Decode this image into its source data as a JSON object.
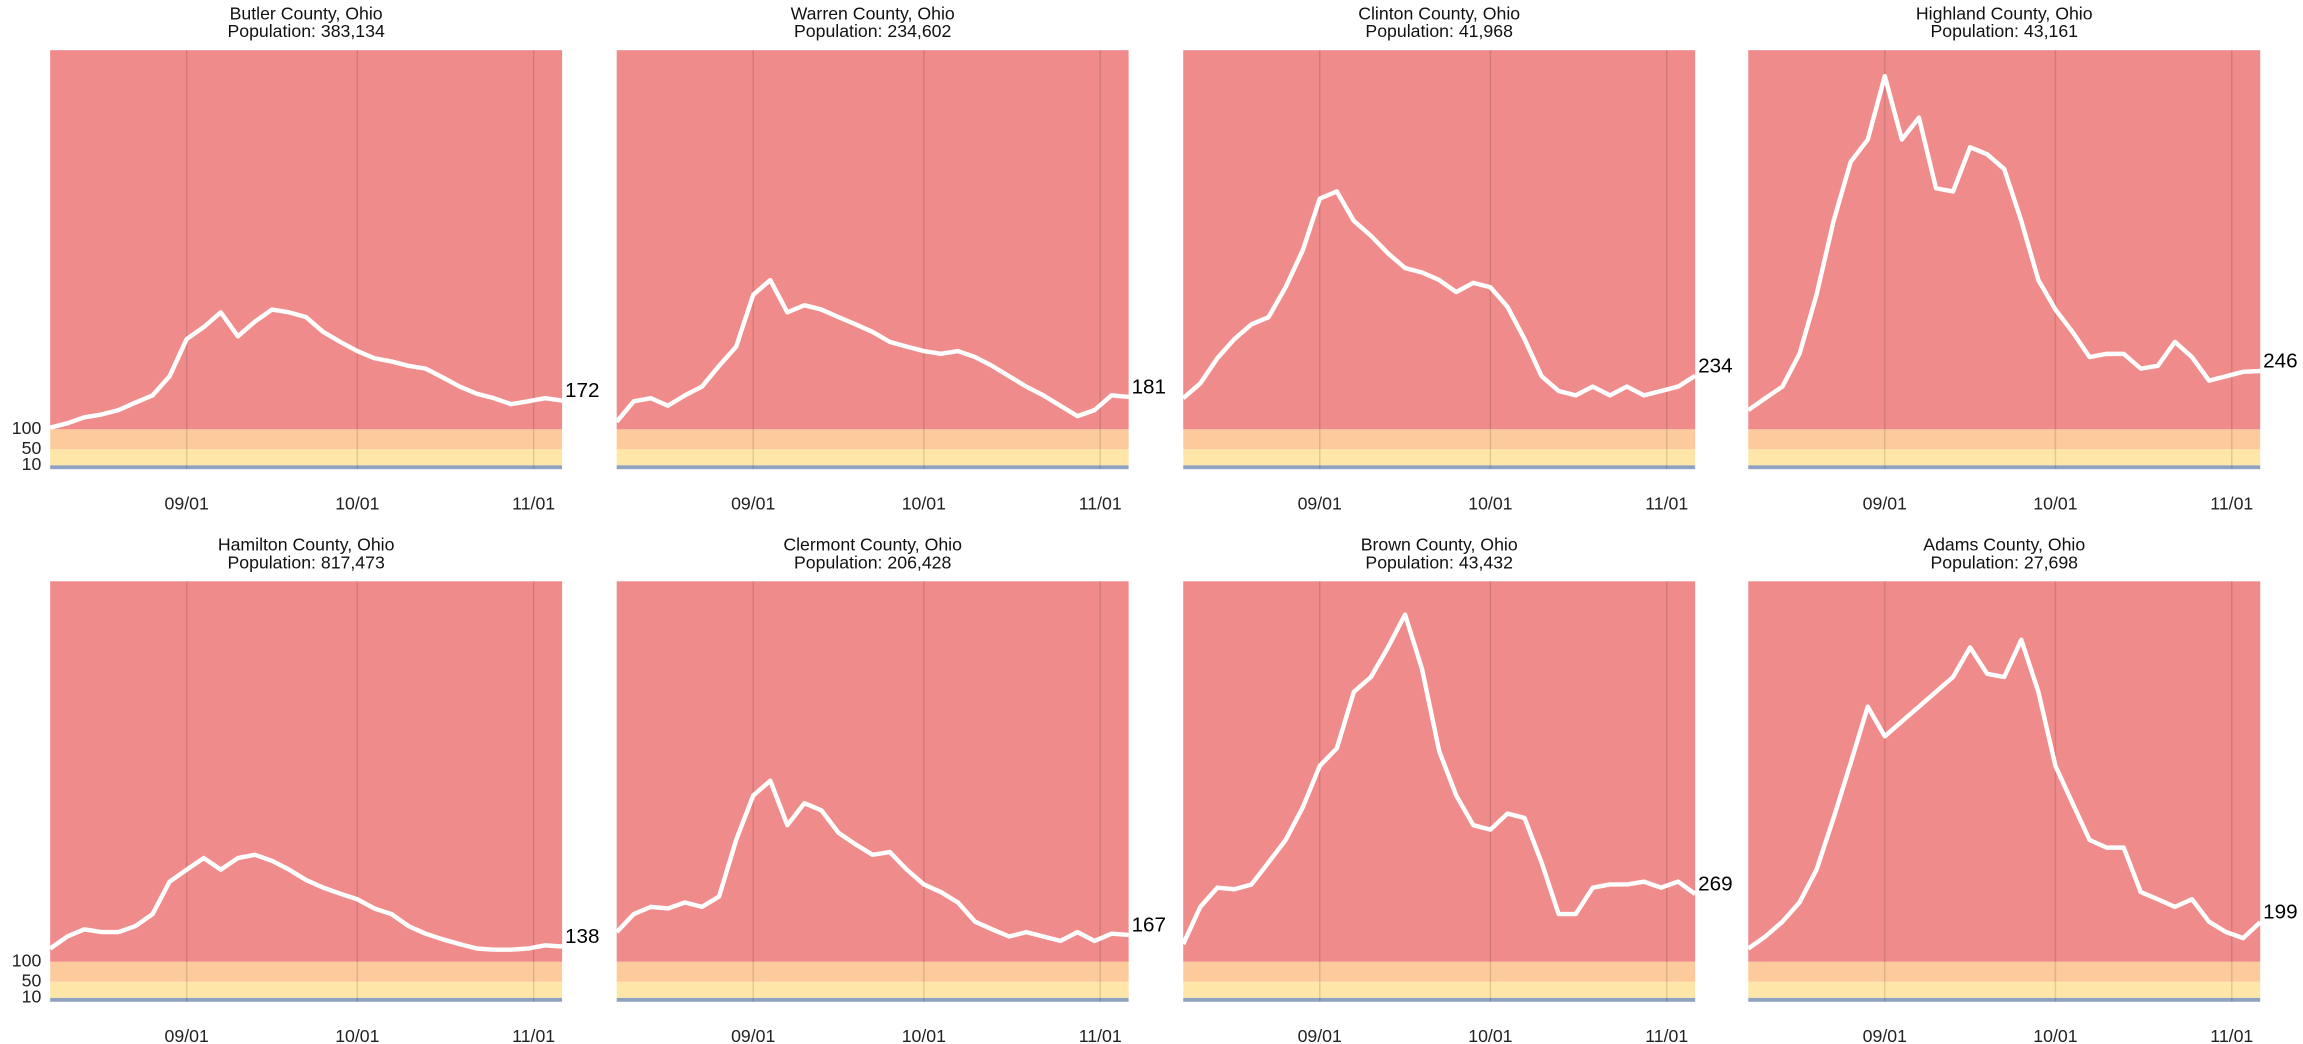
{
  "chart_data": [
    {
      "type": "line",
      "title": "Butler County, Ohio",
      "subtitle": "Population: 383,134",
      "x": [
        "08/08",
        "08/11",
        "08/14",
        "08/17",
        "08/20",
        "08/23",
        "08/26",
        "08/29",
        "09/01",
        "09/04",
        "09/07",
        "09/10",
        "09/13",
        "09/16",
        "09/19",
        "09/22",
        "09/25",
        "09/28",
        "10/01",
        "10/04",
        "10/07",
        "10/10",
        "10/13",
        "10/16",
        "10/19",
        "10/22",
        "10/25",
        "10/28",
        "10/31",
        "11/03",
        "11/06"
      ],
      "values": [
        104,
        115,
        130,
        137,
        148,
        167,
        185,
        233,
        326,
        356,
        393,
        333,
        370,
        400,
        393,
        381,
        344,
        319,
        296,
        278,
        270,
        259,
        252,
        230,
        207,
        189,
        178,
        163,
        170,
        178,
        172
      ],
      "color": "#ffffff",
      "xlim": [
        "08/08",
        "11/06"
      ],
      "xticks": [
        "09/01",
        "10/01",
        "11/01"
      ],
      "ylim": [
        0,
        1050
      ],
      "yticks": [
        10,
        50,
        100
      ],
      "bands": [
        {
          "from": 0,
          "to": 10,
          "color": "#8fa3c0"
        },
        {
          "from": 10,
          "to": 50,
          "color": "#fde6a8"
        },
        {
          "from": 50,
          "to": 100,
          "color": "#fdca9c"
        },
        {
          "from": 100,
          "color": "#f08b8b"
        }
      ]
    },
    {
      "type": "line",
      "title": "Warren County, Ohio",
      "subtitle": "Population: 234,602",
      "x": [
        "08/08",
        "08/11",
        "08/14",
        "08/17",
        "08/20",
        "08/23",
        "08/26",
        "08/29",
        "09/01",
        "09/04",
        "09/07",
        "09/10",
        "09/13",
        "09/16",
        "09/19",
        "09/22",
        "09/25",
        "09/28",
        "10/01",
        "10/04",
        "10/07",
        "10/10",
        "10/13",
        "10/16",
        "10/19",
        "10/22",
        "10/25",
        "10/28",
        "10/31",
        "11/03",
        "11/06"
      ],
      "values": [
        119,
        170,
        178,
        159,
        185,
        207,
        259,
        307,
        437,
        474,
        393,
        411,
        400,
        381,
        363,
        344,
        319,
        307,
        296,
        289,
        296,
        281,
        259,
        233,
        207,
        185,
        159,
        133,
        148,
        185,
        181
      ],
      "color": "#ffffff",
      "xlim": [
        "08/08",
        "11/06"
      ],
      "xticks": [
        "09/01",
        "10/01",
        "11/01"
      ],
      "ylim": [
        0,
        1050
      ],
      "bands": [
        {
          "from": 0,
          "to": 10,
          "color": "#8fa3c0"
        },
        {
          "from": 10,
          "to": 50,
          "color": "#fde6a8"
        },
        {
          "from": 50,
          "to": 100,
          "color": "#fdca9c"
        },
        {
          "from": 100,
          "color": "#f08b8b"
        }
      ]
    },
    {
      "type": "line",
      "title": "Clinton County, Ohio",
      "subtitle": "Population:  41,968",
      "x": [
        "08/08",
        "08/11",
        "08/14",
        "08/17",
        "08/20",
        "08/23",
        "08/26",
        "08/29",
        "09/01",
        "09/04",
        "09/07",
        "09/10",
        "09/13",
        "09/16",
        "09/19",
        "09/22",
        "09/25",
        "09/28",
        "10/01",
        "10/04",
        "10/07",
        "10/10",
        "10/13",
        "10/16",
        "10/19",
        "10/22",
        "10/25",
        "10/28",
        "10/31",
        "11/03",
        "11/06"
      ],
      "values": [
        178,
        215,
        278,
        326,
        363,
        381,
        456,
        548,
        678,
        696,
        622,
        585,
        541,
        504,
        493,
        474,
        444,
        467,
        456,
        407,
        326,
        233,
        196,
        185,
        207,
        185,
        207,
        185,
        196,
        207,
        234
      ],
      "color": "#ffffff",
      "xlim": [
        "08/08",
        "11/06"
      ],
      "xticks": [
        "09/01",
        "10/01",
        "11/01"
      ],
      "ylim": [
        0,
        1050
      ],
      "bands": [
        {
          "from": 0,
          "to": 10,
          "color": "#8fa3c0"
        },
        {
          "from": 10,
          "to": 50,
          "color": "#fde6a8"
        },
        {
          "from": 50,
          "to": 100,
          "color": "#fdca9c"
        },
        {
          "from": 100,
          "color": "#f08b8b"
        }
      ]
    },
    {
      "type": "line",
      "title": "Highland County, Ohio",
      "subtitle": "Population:  43,161",
      "x": [
        "08/08",
        "08/11",
        "08/14",
        "08/17",
        "08/20",
        "08/23",
        "08/26",
        "08/29",
        "09/01",
        "09/04",
        "09/07",
        "09/10",
        "09/13",
        "09/16",
        "09/19",
        "09/22",
        "09/25",
        "09/28",
        "10/01",
        "10/04",
        "10/07",
        "10/10",
        "10/13",
        "10/16",
        "10/19",
        "10/22",
        "10/25",
        "10/28",
        "10/31",
        "11/03",
        "11/06"
      ],
      "values": [
        148,
        178,
        207,
        289,
        437,
        622,
        770,
        826,
        985,
        826,
        881,
        704,
        696,
        807,
        789,
        752,
        622,
        474,
        400,
        344,
        281,
        289,
        289,
        252,
        259,
        319,
        281,
        222,
        233,
        244,
        246
      ],
      "color": "#ffffff",
      "xlim": [
        "08/08",
        "11/06"
      ],
      "xticks": [
        "09/01",
        "10/01",
        "11/01"
      ],
      "ylim": [
        0,
        1050
      ],
      "bands": [
        {
          "from": 0,
          "to": 10,
          "color": "#8fa3c0"
        },
        {
          "from": 10,
          "to": 50,
          "color": "#fde6a8"
        },
        {
          "from": 50,
          "to": 100,
          "color": "#fdca9c"
        },
        {
          "from": 100,
          "color": "#f08b8b"
        }
      ]
    },
    {
      "type": "line",
      "title": "Hamilton County, Ohio",
      "subtitle": "Population: 817,473",
      "x": [
        "08/08",
        "08/11",
        "08/14",
        "08/17",
        "08/20",
        "08/23",
        "08/26",
        "08/29",
        "09/01",
        "09/04",
        "09/07",
        "09/10",
        "09/13",
        "09/16",
        "09/19",
        "09/22",
        "09/25",
        "09/28",
        "10/01",
        "10/04",
        "10/07",
        "10/10",
        "10/13",
        "10/16",
        "10/19",
        "10/22",
        "10/25",
        "10/28",
        "10/31",
        "11/03",
        "11/06"
      ],
      "values": [
        133,
        163,
        181,
        174,
        174,
        189,
        219,
        300,
        330,
        359,
        330,
        359,
        367,
        352,
        330,
        304,
        285,
        270,
        256,
        233,
        219,
        189,
        170,
        156,
        144,
        133,
        130,
        130,
        133,
        141,
        138
      ],
      "color": "#ffffff",
      "xlim": [
        "08/08",
        "11/06"
      ],
      "xticks": [
        "09/01",
        "10/01",
        "11/01"
      ],
      "ylim": [
        0,
        1050
      ],
      "yticks": [
        10,
        50,
        100
      ],
      "bands": [
        {
          "from": 0,
          "to": 10,
          "color": "#8fa3c0"
        },
        {
          "from": 10,
          "to": 50,
          "color": "#fde6a8"
        },
        {
          "from": 50,
          "to": 100,
          "color": "#fdca9c"
        },
        {
          "from": 100,
          "color": "#f08b8b"
        }
      ]
    },
    {
      "type": "line",
      "title": "Clermont County, Ohio",
      "subtitle": "Population: 206,428",
      "x": [
        "08/08",
        "08/11",
        "08/14",
        "08/17",
        "08/20",
        "08/23",
        "08/26",
        "08/29",
        "09/01",
        "09/04",
        "09/07",
        "09/10",
        "09/13",
        "09/16",
        "09/19",
        "09/22",
        "09/25",
        "09/28",
        "10/01",
        "10/04",
        "10/07",
        "10/10",
        "10/13",
        "10/16",
        "10/19",
        "10/22",
        "10/25",
        "10/28",
        "10/31",
        "11/03",
        "11/06"
      ],
      "values": [
        174,
        219,
        237,
        233,
        248,
        237,
        263,
        404,
        515,
        552,
        441,
        496,
        478,
        422,
        393,
        367,
        374,
        330,
        293,
        274,
        248,
        200,
        181,
        163,
        174,
        163,
        152,
        174,
        152,
        170,
        167
      ],
      "color": "#ffffff",
      "xlim": [
        "08/08",
        "11/06"
      ],
      "xticks": [
        "09/01",
        "10/01",
        "11/01"
      ],
      "ylim": [
        0,
        1050
      ],
      "bands": [
        {
          "from": 0,
          "to": 10,
          "color": "#8fa3c0"
        },
        {
          "from": 10,
          "to": 50,
          "color": "#fde6a8"
        },
        {
          "from": 50,
          "to": 100,
          "color": "#fdca9c"
        },
        {
          "from": 100,
          "color": "#f08b8b"
        }
      ]
    },
    {
      "type": "line",
      "title": "Brown County, Ohio",
      "subtitle": "Population:  43,432",
      "x": [
        "08/08",
        "08/11",
        "08/14",
        "08/17",
        "08/20",
        "08/23",
        "08/26",
        "08/29",
        "09/01",
        "09/04",
        "09/07",
        "09/10",
        "09/13",
        "09/16",
        "09/19",
        "09/22",
        "09/25",
        "09/28",
        "10/01",
        "10/04",
        "10/07",
        "10/10",
        "10/13",
        "10/16",
        "10/19",
        "10/22",
        "10/25",
        "10/28",
        "10/31",
        "11/03",
        "11/06"
      ],
      "values": [
        144,
        237,
        285,
        281,
        293,
        348,
        404,
        485,
        589,
        633,
        774,
        811,
        885,
        967,
        830,
        626,
        515,
        441,
        430,
        470,
        459,
        348,
        219,
        219,
        285,
        293,
        293,
        300,
        285,
        300,
        269
      ],
      "color": "#ffffff",
      "xlim": [
        "08/08",
        "11/06"
      ],
      "xticks": [
        "09/01",
        "10/01",
        "11/01"
      ],
      "ylim": [
        0,
        1050
      ],
      "bands": [
        {
          "from": 0,
          "to": 10,
          "color": "#8fa3c0"
        },
        {
          "from": 10,
          "to": 50,
          "color": "#fde6a8"
        },
        {
          "from": 50,
          "to": 100,
          "color": "#fdca9c"
        },
        {
          "from": 100,
          "color": "#f08b8b"
        }
      ]
    },
    {
      "type": "line",
      "title": "Adams County, Ohio",
      "subtitle": "Population:  27,698",
      "x": [
        "08/08",
        "08/11",
        "08/14",
        "08/17",
        "08/20",
        "08/23",
        "08/26",
        "08/29",
        "09/01",
        "09/04",
        "09/07",
        "09/10",
        "09/13",
        "09/16",
        "09/19",
        "09/22",
        "09/25",
        "09/28",
        "10/01",
        "10/04",
        "10/07",
        "10/10",
        "10/13",
        "10/16",
        "10/19",
        "10/22",
        "10/25",
        "10/28",
        "10/31",
        "11/03",
        "11/06"
      ],
      "values": [
        133,
        163,
        200,
        248,
        330,
        459,
        596,
        737,
        663,
        700,
        737,
        774,
        811,
        885,
        819,
        811,
        904,
        774,
        589,
        496,
        404,
        385,
        385,
        274,
        256,
        237,
        256,
        200,
        174,
        159,
        199
      ],
      "color": "#ffffff",
      "xlim": [
        "08/08",
        "11/06"
      ],
      "xticks": [
        "09/01",
        "10/01",
        "11/01"
      ],
      "ylim": [
        0,
        1050
      ],
      "bands": [
        {
          "from": 0,
          "to": 10,
          "color": "#8fa3c0"
        },
        {
          "from": 10,
          "to": 50,
          "color": "#fde6a8"
        },
        {
          "from": 50,
          "to": 100,
          "color": "#fdca9c"
        },
        {
          "from": 100,
          "color": "#f08b8b"
        }
      ]
    }
  ]
}
